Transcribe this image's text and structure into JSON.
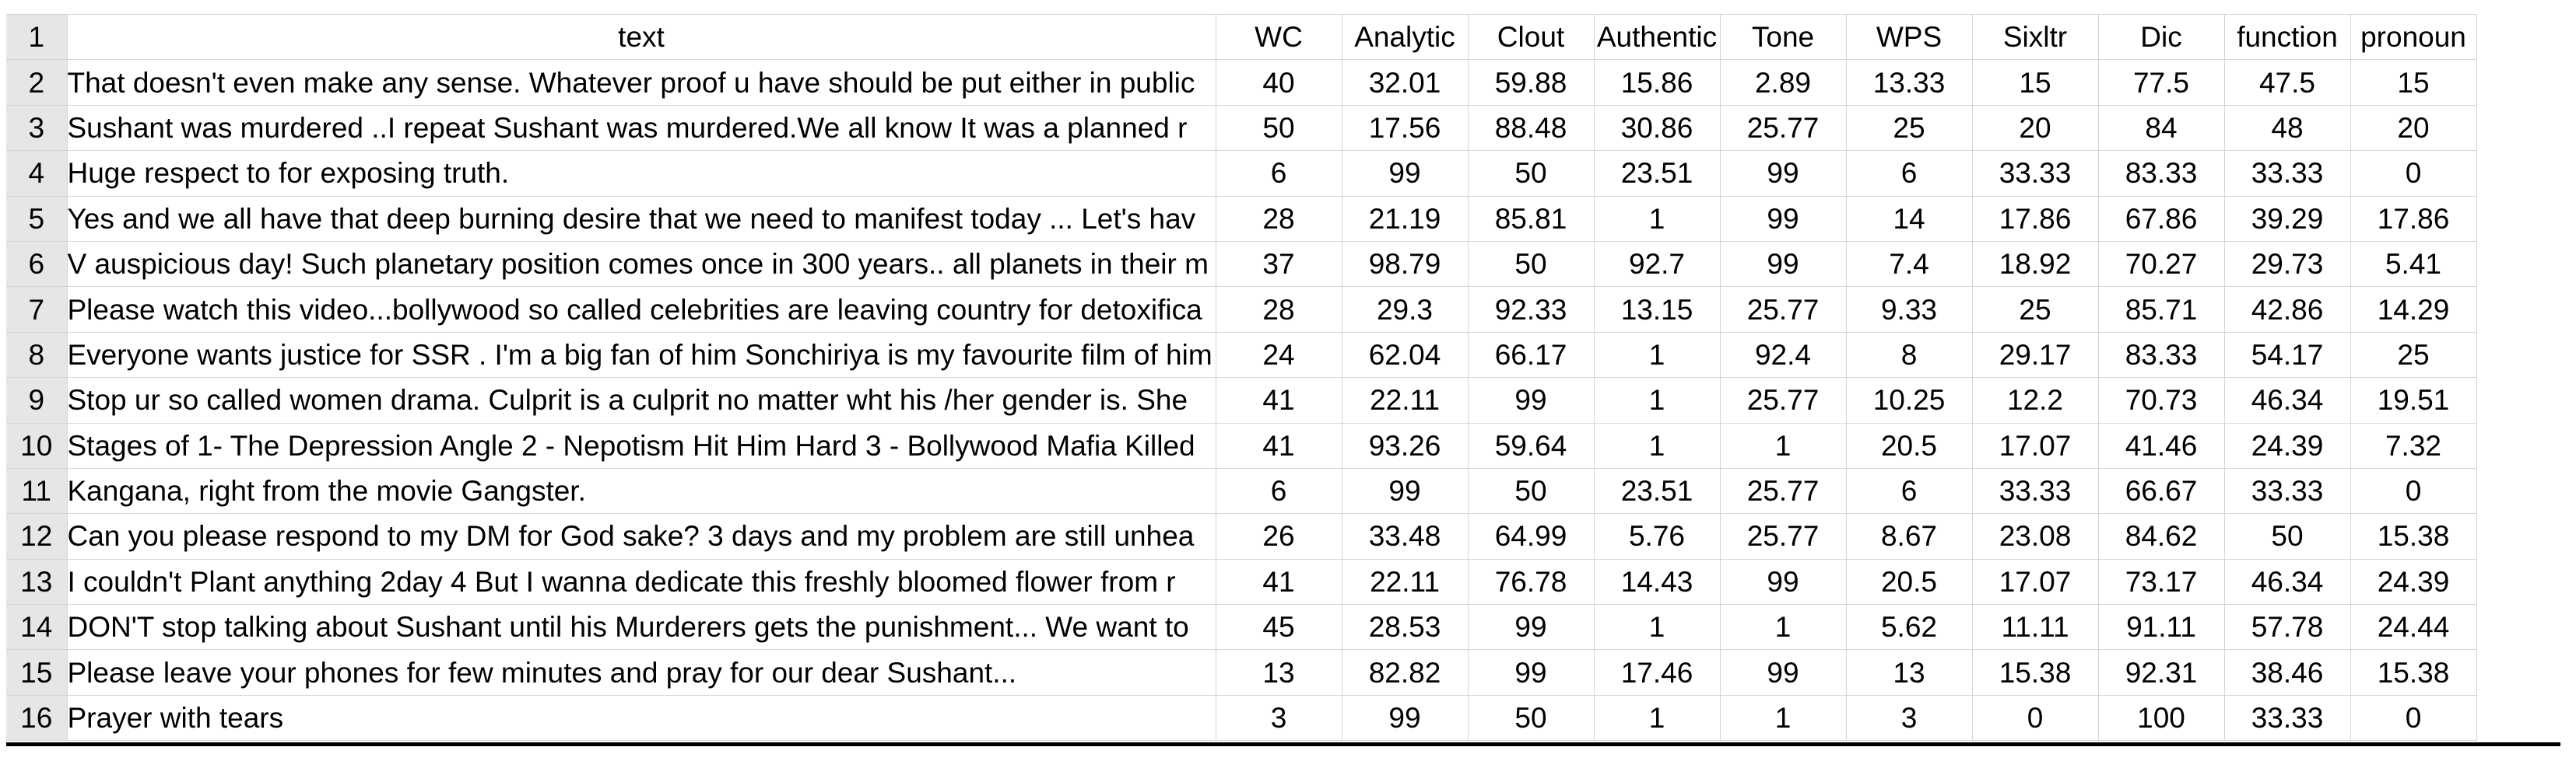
{
  "header_row": {
    "row_num": "1",
    "cells": [
      "text",
      "WC",
      "Analytic",
      "Clout",
      "Authentic",
      "Tone",
      "WPS",
      "Sixltr",
      "Dic",
      "function",
      "pronoun"
    ]
  },
  "rows": [
    {
      "n": "2",
      "text": "That doesn't even make any sense. Whatever proof u have should be put either in public",
      "vals": [
        "40",
        "32.01",
        "59.88",
        "15.86",
        "2.89",
        "13.33",
        "15",
        "77.5",
        "47.5",
        "15"
      ]
    },
    {
      "n": "3",
      "text": " Sushant was murdered ..I repeat Sushant was murdered.We all know It was a planned r",
      "vals": [
        "50",
        "17.56",
        "88.48",
        "30.86",
        "25.77",
        "25",
        "20",
        "84",
        "48",
        "20"
      ]
    },
    {
      "n": "4",
      "text": "Huge respect to  for exposing truth.",
      "vals": [
        "6",
        "99",
        "50",
        "23.51",
        "99",
        "6",
        "33.33",
        "83.33",
        "33.33",
        "0"
      ]
    },
    {
      "n": "5",
      "text": "Yes and we all have that deep burning desire that we need to manifest today ... Let's hav",
      "vals": [
        "28",
        "21.19",
        "85.81",
        "1",
        "99",
        "14",
        "17.86",
        "67.86",
        "39.29",
        "17.86"
      ]
    },
    {
      "n": "6",
      "text": "V auspicious day! Such planetary position comes once in 300 years.. all planets in their m",
      "vals": [
        "37",
        "98.79",
        "50",
        "92.7",
        "99",
        "7.4",
        "18.92",
        "70.27",
        "29.73",
        "5.41"
      ]
    },
    {
      "n": "7",
      "text": "Please watch this video...bollywood so called celebrities are leaving country for detoxifica",
      "vals": [
        "28",
        "29.3",
        "92.33",
        "13.15",
        "25.77",
        "9.33",
        "25",
        "85.71",
        "42.86",
        "14.29"
      ]
    },
    {
      "n": "8",
      "text": "Everyone wants justice for SSR . I'm a big fan of him Sonchiriya is my favourite film of him",
      "vals": [
        "24",
        "62.04",
        "66.17",
        "1",
        "92.4",
        "8",
        "29.17",
        "83.33",
        "54.17",
        "25"
      ]
    },
    {
      "n": "9",
      "text": "Stop ur so called women drama. Culprit is a culprit no matter wht his /her gender is. She",
      "vals": [
        "41",
        "22.11",
        "99",
        "1",
        "25.77",
        "10.25",
        "12.2",
        "70.73",
        "46.34",
        "19.51"
      ]
    },
    {
      "n": "10",
      "text": " Stages of  1- The Depression Angle 2 - Nepotism Hit Him Hard 3 - Bollywood Mafia Killed",
      "vals": [
        "41",
        "93.26",
        "59.64",
        "1",
        "1",
        "20.5",
        "17.07",
        "41.46",
        "24.39",
        "7.32"
      ]
    },
    {
      "n": "11",
      "text": " Kangana, right from the movie Gangster.",
      "vals": [
        "6",
        "99",
        "50",
        "23.51",
        "25.77",
        "6",
        "33.33",
        "66.67",
        "33.33",
        "0"
      ]
    },
    {
      "n": "12",
      "text": " Can you please respond to my DM for God sake? 3 days and my problem are still unhea",
      "vals": [
        "26",
        "33.48",
        "64.99",
        "5.76",
        "25.77",
        "8.67",
        "23.08",
        "84.62",
        "50",
        "15.38"
      ]
    },
    {
      "n": "13",
      "text": "I couldn't Plant anything 2day 4  But I wanna dedicate this freshly bloomed flower from r",
      "vals": [
        "41",
        "22.11",
        "76.78",
        "14.43",
        "99",
        "20.5",
        "17.07",
        "73.17",
        "46.34",
        "24.39"
      ]
    },
    {
      "n": "14",
      "text": "DON'T stop talking about Sushant until his Murderers gets the punishment... We want to",
      "vals": [
        "45",
        "28.53",
        "99",
        "1",
        "1",
        "5.62",
        "11.11",
        "91.11",
        "57.78",
        "24.44"
      ]
    },
    {
      "n": "15",
      "text": "Please leave your phones for few minutes and pray for our dear Sushant...",
      "vals": [
        "13",
        "82.82",
        "99",
        "17.46",
        "99",
        "13",
        "15.38",
        "92.31",
        "38.46",
        "15.38"
      ]
    },
    {
      "n": "16",
      "text": "Prayer with tears",
      "vals": [
        "3",
        "99",
        "50",
        "1",
        "1",
        "3",
        "0",
        "100",
        "33.33",
        "0"
      ]
    }
  ]
}
